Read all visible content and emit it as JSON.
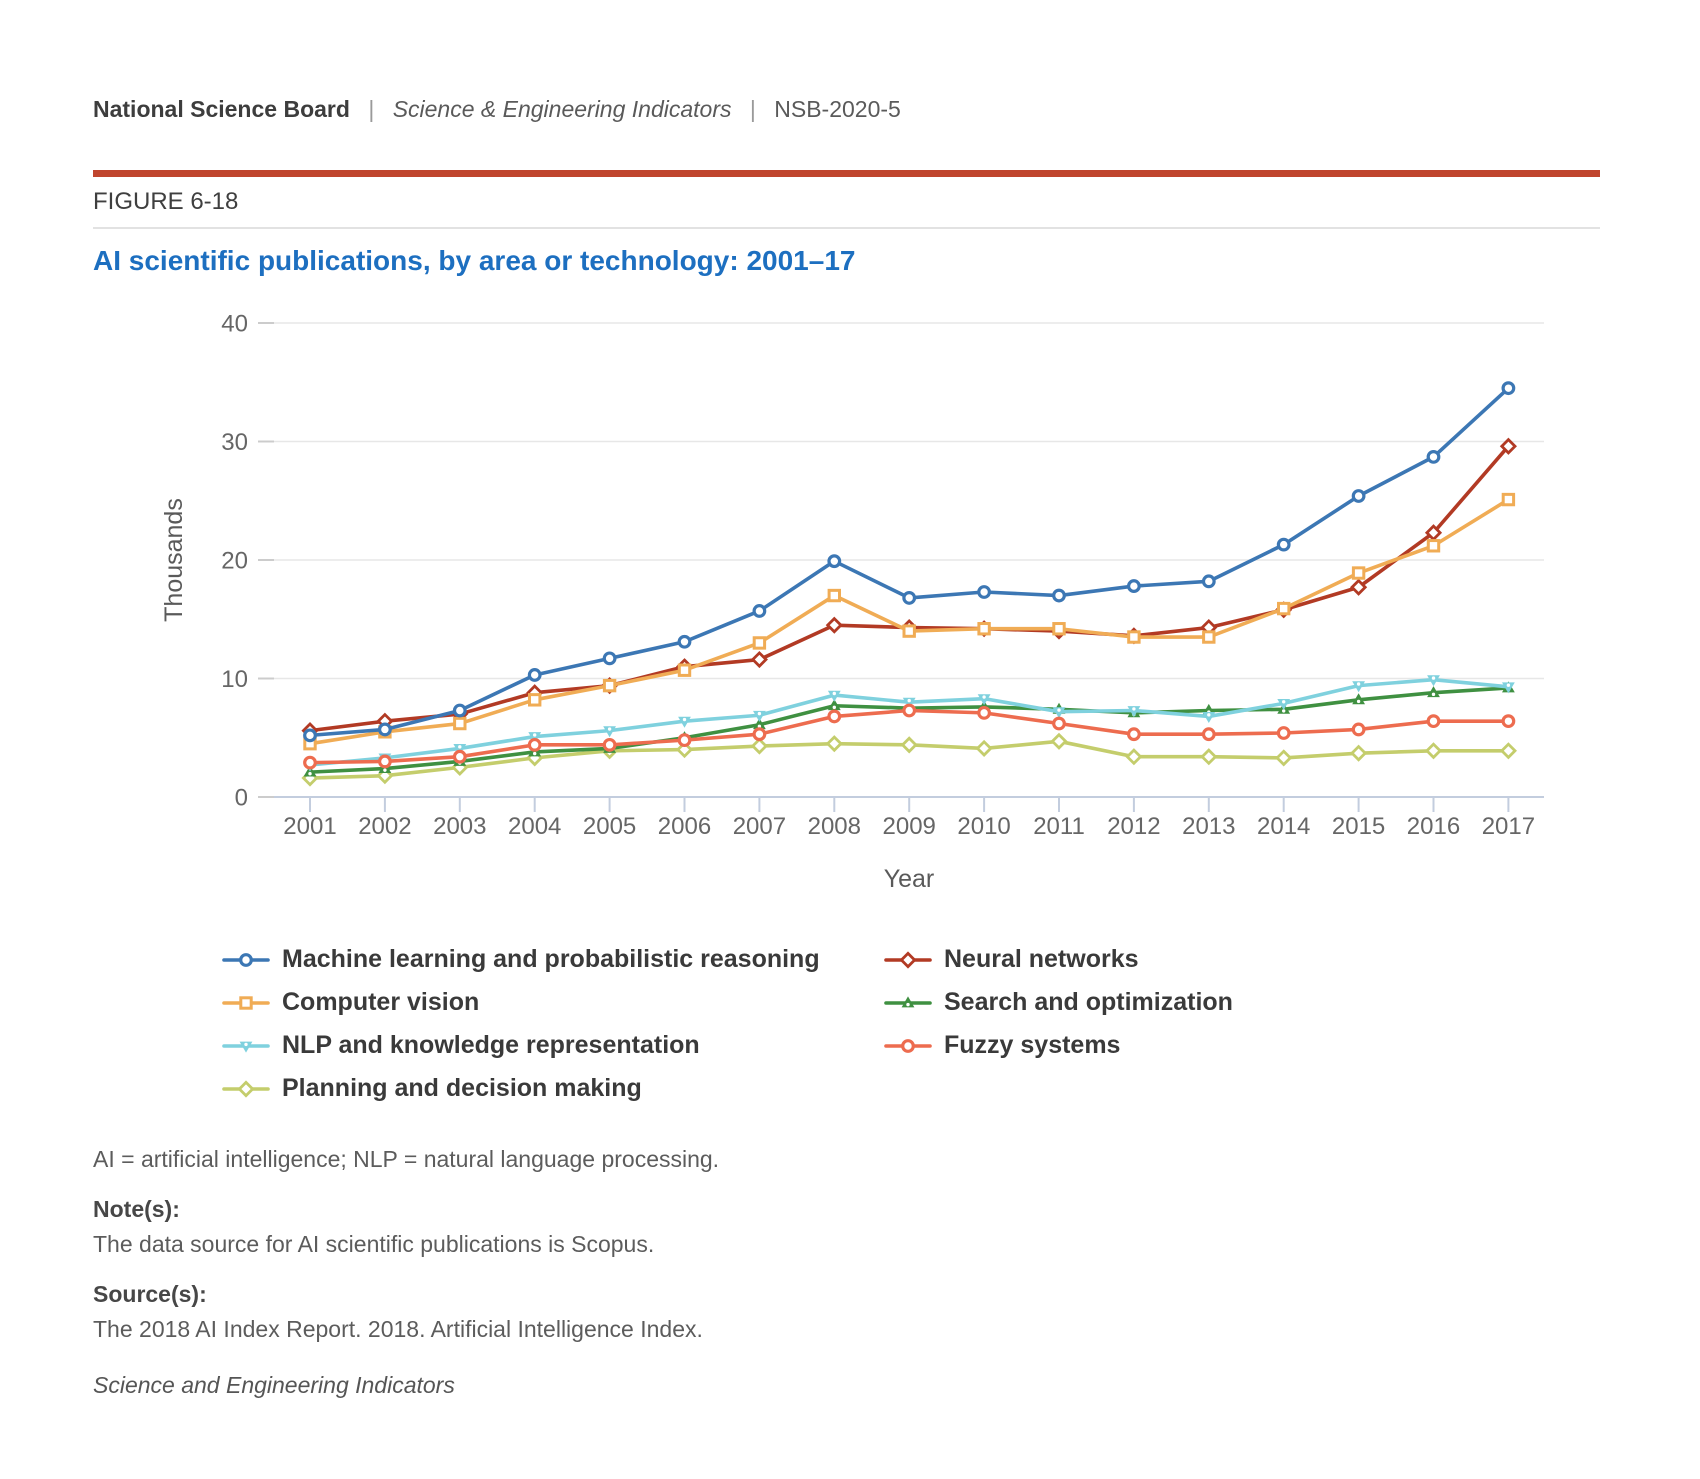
{
  "theme": {
    "accent_rule_color": "#C0452E",
    "title_color": "#1D6FC0",
    "axis_text_color": "#666666",
    "legend_text_color": "#3A3A3A"
  },
  "header": {
    "org": "National Science Board",
    "separator": "|",
    "publication": "Science & Engineering Indicators",
    "report_id": "NSB-2020-5"
  },
  "figure": {
    "label": "FIGURE 6-18",
    "title": "AI scientific publications, by area or technology: 2001–17"
  },
  "chart_data": {
    "type": "line",
    "title": "AI scientific publications, by area or technology: 2001–17",
    "xlabel": "Year",
    "ylabel": "Thousands",
    "ylim": [
      0,
      40
    ],
    "yticks": [
      0,
      10,
      20,
      30,
      40
    ],
    "grid": true,
    "legend_position": "bottom",
    "x": [
      2001,
      2002,
      2003,
      2004,
      2005,
      2006,
      2007,
      2008,
      2009,
      2010,
      2011,
      2012,
      2013,
      2014,
      2015,
      2016,
      2017
    ],
    "series": [
      {
        "name": "Machine learning and probabilistic reasoning",
        "color": "#3C77B4",
        "marker": "circle",
        "values": [
          5.2,
          5.7,
          7.3,
          10.3,
          11.7,
          13.1,
          15.7,
          19.9,
          16.8,
          17.3,
          17.0,
          17.8,
          18.2,
          21.3,
          25.4,
          28.7,
          34.5
        ]
      },
      {
        "name": "Neural networks",
        "color": "#B23A24",
        "marker": "diamond",
        "values": [
          5.6,
          6.4,
          7.0,
          8.8,
          9.4,
          11.0,
          11.6,
          14.5,
          14.3,
          14.2,
          14.0,
          13.6,
          14.3,
          15.8,
          17.7,
          22.3,
          29.6
        ]
      },
      {
        "name": "Computer vision",
        "color": "#F0AC55",
        "marker": "square",
        "values": [
          4.5,
          5.5,
          6.2,
          8.2,
          9.4,
          10.7,
          13.0,
          17.0,
          14.0,
          14.2,
          14.2,
          13.5,
          13.5,
          15.9,
          18.9,
          21.2,
          25.1
        ]
      },
      {
        "name": "Search and optimization",
        "color": "#3F9041",
        "marker": "triangle-up",
        "values": [
          2.1,
          2.4,
          3.0,
          3.8,
          4.1,
          5.0,
          6.1,
          7.7,
          7.5,
          7.6,
          7.4,
          7.1,
          7.3,
          7.4,
          8.2,
          8.8,
          9.2
        ]
      },
      {
        "name": "NLP and knowledge representation",
        "color": "#7FD1DE",
        "marker": "triangle-down",
        "values": [
          2.7,
          3.3,
          4.1,
          5.1,
          5.6,
          6.4,
          6.9,
          8.6,
          8.0,
          8.3,
          7.2,
          7.3,
          6.8,
          7.9,
          9.4,
          9.9,
          9.3
        ]
      },
      {
        "name": "Fuzzy systems",
        "color": "#ED6C4F",
        "marker": "circle",
        "values": [
          2.9,
          3.0,
          3.4,
          4.4,
          4.4,
          4.8,
          5.3,
          6.8,
          7.3,
          7.1,
          6.2,
          5.3,
          5.3,
          5.4,
          5.7,
          6.4,
          6.4
        ]
      },
      {
        "name": "Planning and decision making",
        "color": "#C4CD6C",
        "marker": "diamond",
        "values": [
          1.6,
          1.8,
          2.5,
          3.3,
          3.9,
          4.0,
          4.3,
          4.5,
          4.4,
          4.1,
          4.7,
          3.4,
          3.4,
          3.3,
          3.7,
          3.9,
          3.9
        ]
      }
    ],
    "draw_order": [
      6,
      3,
      4,
      5,
      1,
      2,
      0
    ],
    "legend_columns": [
      [
        0,
        2,
        4,
        6
      ],
      [
        1,
        3,
        5
      ]
    ]
  },
  "footnotes": {
    "abbreviations": "AI = artificial intelligence; NLP = natural language processing.",
    "notes_label": "Note(s):",
    "notes": "The data source for AI scientific publications is Scopus.",
    "sources_label": "Source(s):",
    "sources": "The 2018 AI Index Report. 2018. Artificial Intelligence Index.",
    "publication_italic": "Science and Engineering Indicators"
  }
}
